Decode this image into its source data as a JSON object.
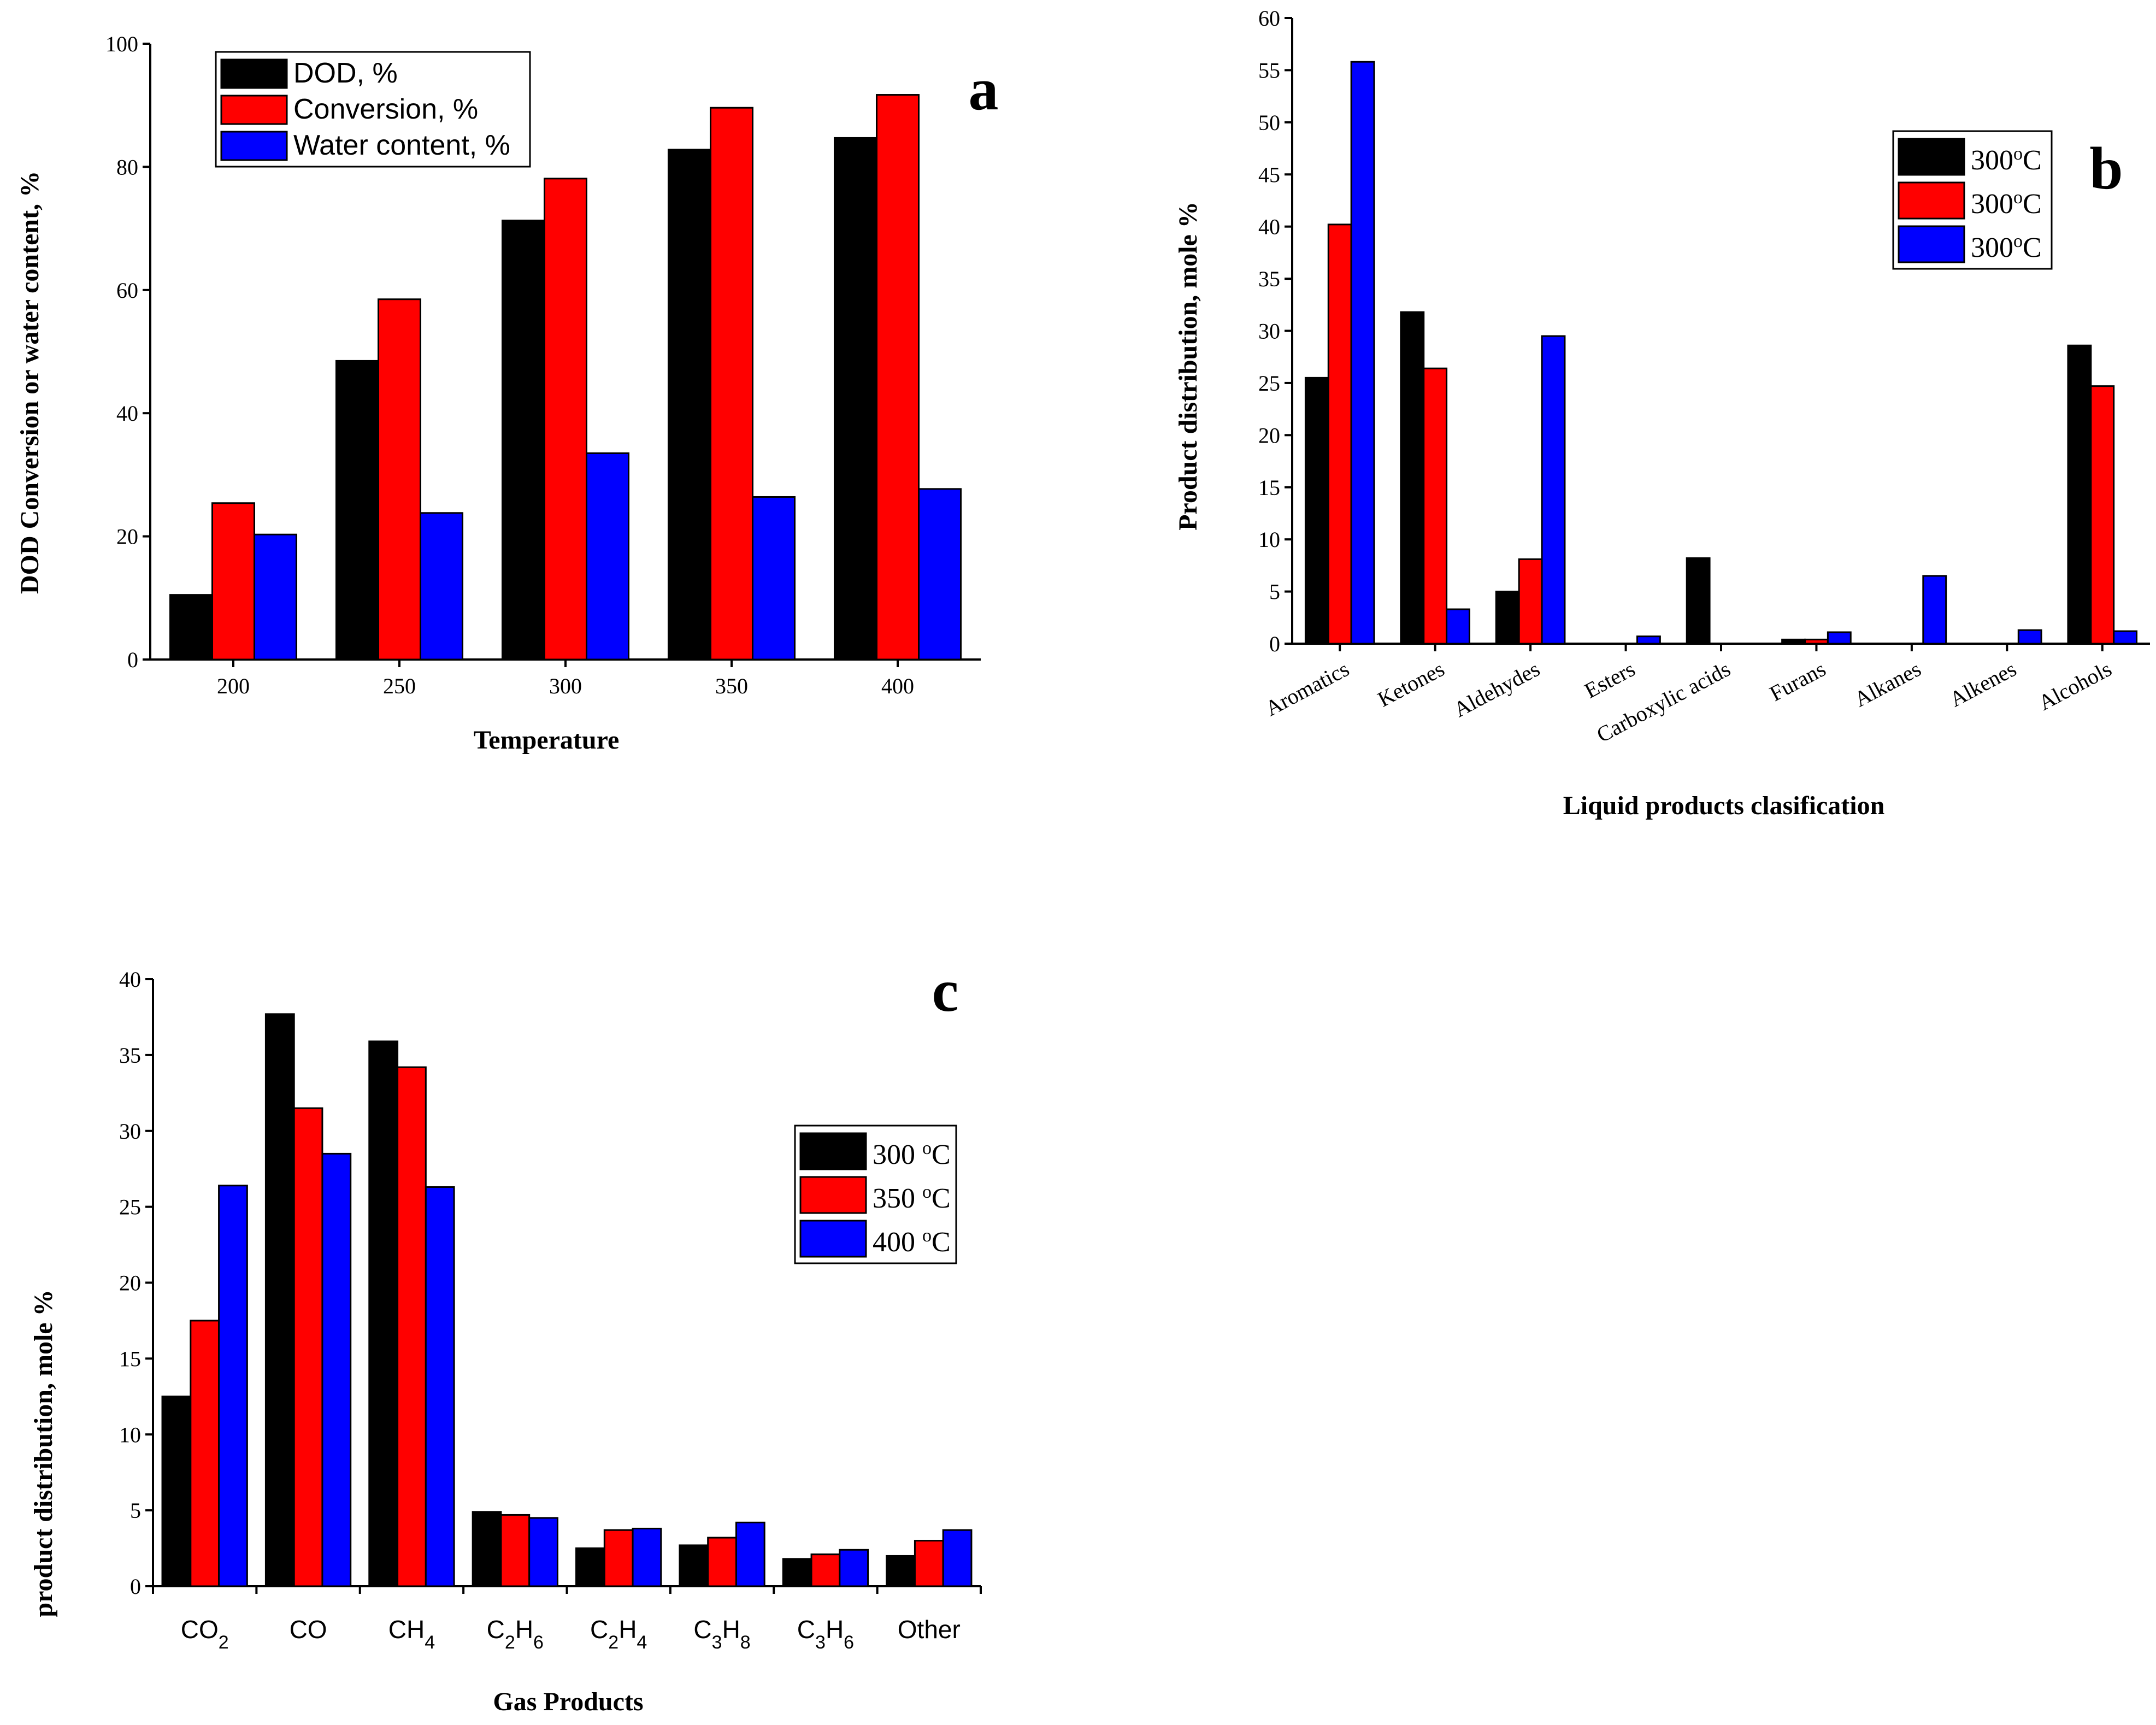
{
  "chart_data": [
    {
      "id": "a",
      "type": "bar",
      "panel_letter": "a",
      "xlabel": "Temperature",
      "ylabel": "DOD Conversion or water content, %",
      "ylim": [
        0,
        100
      ],
      "yticks": [
        0,
        20,
        40,
        60,
        80,
        100
      ],
      "categories": [
        "200",
        "250",
        "300",
        "350",
        "400"
      ],
      "legend_position": "top-left",
      "series": [
        {
          "name": "DOD, %",
          "color": "#000000",
          "values": [
            10.5,
            48.5,
            71.3,
            82.8,
            84.7
          ]
        },
        {
          "name": "Conversion, %",
          "color": "#ff0000",
          "values": [
            25.4,
            58.5,
            78.1,
            89.6,
            91.7
          ]
        },
        {
          "name": "Water content, %",
          "color": "#0000ff",
          "values": [
            20.3,
            23.8,
            33.5,
            26.4,
            27.7
          ]
        }
      ]
    },
    {
      "id": "b",
      "type": "bar",
      "panel_letter": "b",
      "xlabel": "Liquid products clasification",
      "ylabel": "Product distribution, mole %",
      "ylim": [
        0,
        60
      ],
      "yticks": [
        0,
        5,
        10,
        15,
        20,
        25,
        30,
        35,
        40,
        45,
        50,
        55,
        60
      ],
      "categories": [
        "Aromatics",
        "Ketones",
        "Aldehydes",
        "Esters",
        "Carboxylic acids",
        "Furans",
        "Alkanes",
        "Alkenes",
        "Alcohols"
      ],
      "legend_position": "top-right",
      "series": [
        {
          "name": "300°C",
          "color": "#000000",
          "values": [
            25.5,
            31.8,
            5.0,
            0,
            8.2,
            0.4,
            0,
            0,
            28.6
          ]
        },
        {
          "name": "300°C",
          "color": "#ff0000",
          "values": [
            40.2,
            26.4,
            8.1,
            0,
            0,
            0.4,
            0,
            0,
            24.7
          ]
        },
        {
          "name": "300°C",
          "color": "#0000ff",
          "values": [
            55.8,
            3.3,
            29.5,
            0.7,
            0,
            1.1,
            6.5,
            1.3,
            1.2
          ]
        }
      ]
    },
    {
      "id": "c",
      "type": "bar",
      "panel_letter": "c",
      "xlabel": "Gas Products",
      "ylabel": "product distribution, mole %",
      "ylim": [
        0,
        40
      ],
      "yticks": [
        0,
        5,
        10,
        15,
        20,
        25,
        30,
        35,
        40
      ],
      "categories": [
        "CO2",
        "CO",
        "CH4",
        "C2H6",
        "C2H4",
        "C3H8",
        "C3H6",
        "Other"
      ],
      "legend_position": "right",
      "series": [
        {
          "name": "300 °C",
          "color": "#000000",
          "values": [
            12.5,
            37.7,
            35.9,
            4.9,
            2.5,
            2.7,
            1.8,
            2.0
          ]
        },
        {
          "name": "350 °C",
          "color": "#ff0000",
          "values": [
            17.5,
            31.5,
            34.2,
            4.7,
            3.7,
            3.2,
            2.1,
            3.0
          ]
        },
        {
          "name": "400 °C",
          "color": "#0000ff",
          "values": [
            26.4,
            28.5,
            26.3,
            4.5,
            3.8,
            4.2,
            2.4,
            3.7
          ]
        }
      ]
    }
  ]
}
